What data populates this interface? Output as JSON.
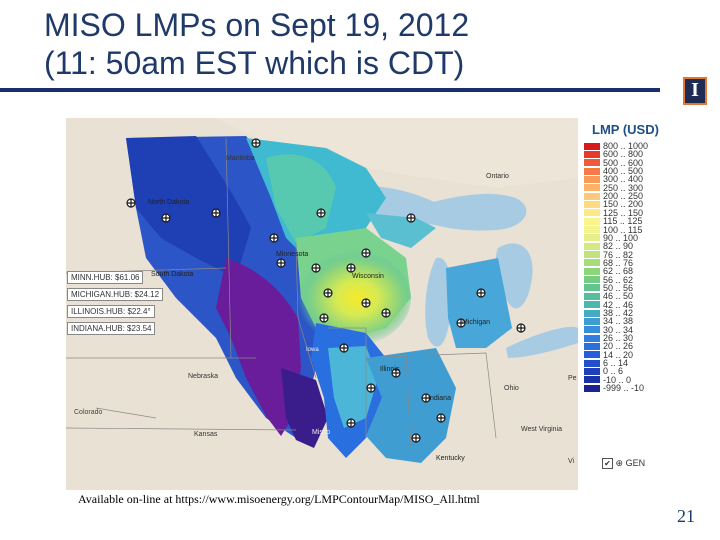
{
  "slide": {
    "title_line1": "MISO LMPs on Sept 19, 2012",
    "title_line2": "(11: 50am EST which is CDT)",
    "source": "Available on-line at https://www.misoenergy.org/LMPContourMap/MISO_All.html",
    "page_number": "21",
    "logo_letter": "I"
  },
  "map": {
    "hubs": [
      {
        "label": "MINN.HUB: $61.06"
      },
      {
        "label": "MICHIGAN.HUB: $24.12"
      },
      {
        "label": "ILLINOIS.HUB: $22.4°"
      },
      {
        "label": "INDIANA.HUB: $23.54"
      }
    ],
    "places": {
      "manitoba": "Manitoba",
      "ontario": "Ontario",
      "north_dakota": "North Dakota",
      "south_dakota": "South Dakota",
      "minnesota": "Minnesota",
      "wisconsin": "Wisconsin",
      "michigan": "Michigan",
      "iowa": "Iowa",
      "illinois": "Illinois",
      "indiana": "Indiana",
      "ohio": "Ohio",
      "nebraska": "Nebraska",
      "colorado": "Colorado",
      "kansas": "Kansas",
      "missouri": "Misso",
      "kentucky": "Kentucky",
      "west_virginia": "West Virginia",
      "penn": "Pe",
      "vi": "Vi"
    }
  },
  "legend": {
    "title": "LMP (USD)",
    "colors": {
      "c0": "#d7191c",
      "c1": "#e43b2c",
      "c2": "#ef5a3a",
      "c3": "#f47a4a",
      "c4": "#f99a5a",
      "c5": "#fbb36a",
      "c6": "#fcca7a",
      "c7": "#fddc80",
      "c8": "#fee987",
      "c9": "#fef48c",
      "c10": "#f5f58d",
      "c11": "#e6f08a",
      "c12": "#d3ea82",
      "c13": "#bfe37d",
      "c14": "#a6dc7a",
      "c15": "#8dd47b",
      "c16": "#76cd82",
      "c17": "#62c58f",
      "c18": "#55bea0",
      "c19": "#4cb6b2",
      "c20": "#46aac3",
      "c21": "#3f9dd1",
      "c22": "#388edb",
      "c23": "#317fe0",
      "c24": "#2a6fe0",
      "c25": "#2660d8",
      "c26": "#2250cc",
      "c27": "#1e40bb",
      "c28": "#1b31a6",
      "c29": "#1a2390",
      "c30": "#5a2a9a",
      "c31": "#6a1d9a"
    },
    "ranges": [
      "800 .. 1000",
      "600 .. 800",
      "500 .. 600",
      "400 .. 500",
      "300 .. 400",
      "250 .. 300",
      "200 .. 250",
      "150 .. 200",
      "125 .. 150",
      "115 .. 125",
      "100 .. 115",
      "90 .. 100",
      "82 .. 90",
      "76 .. 82",
      "68 .. 76",
      "62 .. 68",
      "56 .. 62",
      "50 .. 56",
      "46 .. 50",
      "42 .. 46",
      "38 .. 42",
      "34 .. 38",
      "30 .. 34",
      "26 .. 30",
      "20 .. 26",
      "14 .. 20",
      "6 .. 14",
      "0 .. 6",
      "-10 .. 0",
      "-999 .. -10"
    ],
    "control_label": "GEN"
  }
}
